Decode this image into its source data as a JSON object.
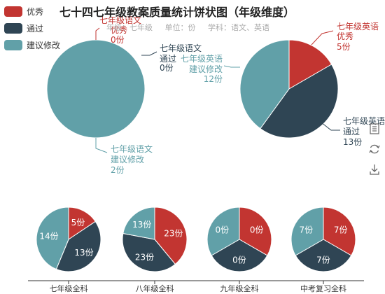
{
  "title": "七十四七年级教案质量统计饼状图（年级维度）",
  "subtitle": {
    "grade_label": "年级：",
    "grade_value": "七年级",
    "unit_label": "单位：",
    "unit_value": "份",
    "subject_label": "学科：",
    "subject_value": "语文、英语"
  },
  "legend": [
    {
      "name": "优秀",
      "color": "#c23531"
    },
    {
      "name": "通过",
      "color": "#2f4554"
    },
    {
      "name": "建议修改",
      "color": "#61a0a8"
    }
  ],
  "toolbox": [
    {
      "name": "data-view-icon"
    },
    {
      "name": "restore-icon"
    },
    {
      "name": "save-image-icon"
    }
  ],
  "chart_data": [
    {
      "type": "pie",
      "title": "七年级语文",
      "unit": "份",
      "slices": [
        {
          "name": "优秀",
          "value": 0
        },
        {
          "name": "通过",
          "value": 0
        },
        {
          "name": "建议修改",
          "value": 2
        }
      ]
    },
    {
      "type": "pie",
      "title": "七年级英语",
      "unit": "份",
      "slices": [
        {
          "name": "优秀",
          "value": 5
        },
        {
          "name": "通过",
          "value": 13
        },
        {
          "name": "建议修改",
          "value": 12
        }
      ]
    },
    {
      "type": "pie",
      "title": "七年级全科",
      "unit": "份",
      "slices": [
        {
          "name": "优秀",
          "value": 5
        },
        {
          "name": "通过",
          "value": 13
        },
        {
          "name": "建议修改",
          "value": 14
        }
      ]
    },
    {
      "type": "pie",
      "title": "八年级全科",
      "unit": "份",
      "slices": [
        {
          "name": "优秀",
          "value": 23
        },
        {
          "name": "通过",
          "value": 23
        },
        {
          "name": "建议修改",
          "value": 13
        }
      ]
    },
    {
      "type": "pie",
      "title": "九年级全科",
      "unit": "份",
      "slices": [
        {
          "name": "优秀",
          "value": 0
        },
        {
          "name": "通过",
          "value": 0
        },
        {
          "name": "建议修改",
          "value": 0
        }
      ]
    },
    {
      "type": "pie",
      "title": "中考复习全科",
      "unit": "份",
      "slices": [
        {
          "name": "优秀",
          "value": 7
        },
        {
          "name": "通过",
          "value": 7
        },
        {
          "name": "建议修改",
          "value": 7
        }
      ]
    }
  ]
}
